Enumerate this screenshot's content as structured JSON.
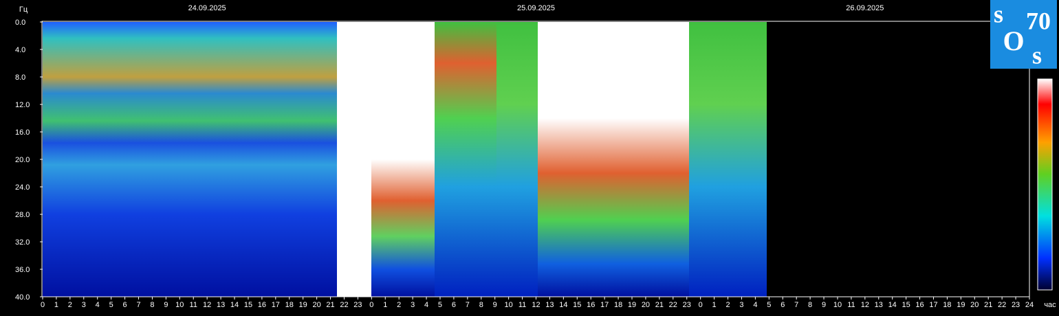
{
  "chart_data": {
    "type": "spectrogram",
    "y_label": "Гц",
    "x_label": "час",
    "dates": [
      "24.09.2025",
      "25.09.2025",
      "26.09.2025"
    ],
    "xlim": [
      0,
      72
    ],
    "ylim": [
      40,
      0
    ],
    "xticks": [
      0,
      1,
      2,
      3,
      4,
      5,
      6,
      7,
      8,
      9,
      10,
      11,
      12,
      13,
      14,
      15,
      16,
      17,
      18,
      19,
      20,
      21,
      22,
      23,
      {
        "value": 24,
        "label": "0"
      },
      {
        "value": 25,
        "label": "1"
      },
      {
        "value": 26,
        "label": "2"
      },
      {
        "value": 27,
        "label": "3"
      },
      {
        "value": 28,
        "label": "4"
      },
      {
        "value": 29,
        "label": "5"
      },
      {
        "value": 30,
        "label": "6"
      },
      {
        "value": 31,
        "label": "7"
      },
      {
        "value": 32,
        "label": "8"
      },
      {
        "value": 33,
        "label": "9"
      },
      {
        "value": 34,
        "label": "10"
      },
      {
        "value": 35,
        "label": "11"
      },
      {
        "value": 36,
        "label": "12"
      },
      {
        "value": 37,
        "label": "13"
      },
      {
        "value": 38,
        "label": "14"
      },
      {
        "value": 39,
        "label": "15"
      },
      {
        "value": 40,
        "label": "16"
      },
      {
        "value": 41,
        "label": "17"
      },
      {
        "value": 42,
        "label": "18"
      },
      {
        "value": 43,
        "label": "19"
      },
      {
        "value": 44,
        "label": "20"
      },
      {
        "value": 45,
        "label": "21"
      },
      {
        "value": 46,
        "label": "22"
      },
      {
        "value": 47,
        "label": "23"
      },
      {
        "value": 48,
        "label": "0"
      },
      {
        "value": 49,
        "label": "1"
      },
      {
        "value": 50,
        "label": "2"
      },
      {
        "value": 51,
        "label": "3"
      },
      {
        "value": 52,
        "label": "4"
      },
      {
        "value": 53,
        "label": "5"
      },
      {
        "value": 54,
        "label": "6"
      },
      {
        "value": 55,
        "label": "7"
      },
      {
        "value": 56,
        "label": "8"
      },
      {
        "value": 57,
        "label": "9"
      },
      {
        "value": 58,
        "label": "10"
      },
      {
        "value": 59,
        "label": "11"
      },
      {
        "value": 60,
        "label": "12"
      },
      {
        "value": 61,
        "label": "13"
      },
      {
        "value": 62,
        "label": "14"
      },
      {
        "value": 63,
        "label": "15"
      },
      {
        "value": 64,
        "label": "16"
      },
      {
        "value": 65,
        "label": "17"
      },
      {
        "value": 66,
        "label": "18"
      },
      {
        "value": 67,
        "label": "19"
      },
      {
        "value": 68,
        "label": "20"
      },
      {
        "value": 69,
        "label": "21"
      },
      {
        "value": 70,
        "label": "22"
      },
      {
        "value": 71,
        "label": "23"
      },
      {
        "value": 72,
        "label": "24"
      }
    ],
    "yticks": [
      {
        "value": 0,
        "label": "0.0"
      },
      {
        "value": 4,
        "label": "4.0"
      },
      {
        "value": 8,
        "label": "8.0"
      },
      {
        "value": 12,
        "label": "12.0"
      },
      {
        "value": 16,
        "label": "16.0"
      },
      {
        "value": 20,
        "label": "20.0"
      },
      {
        "value": 24,
        "label": "24.0"
      },
      {
        "value": 28,
        "label": "28.0"
      },
      {
        "value": 32,
        "label": "32.0"
      },
      {
        "value": 36,
        "label": "36.0"
      },
      {
        "value": 40,
        "label": "40.0"
      }
    ]
  },
  "logo": [
    "s",
    "70",
    "O",
    "s"
  ]
}
